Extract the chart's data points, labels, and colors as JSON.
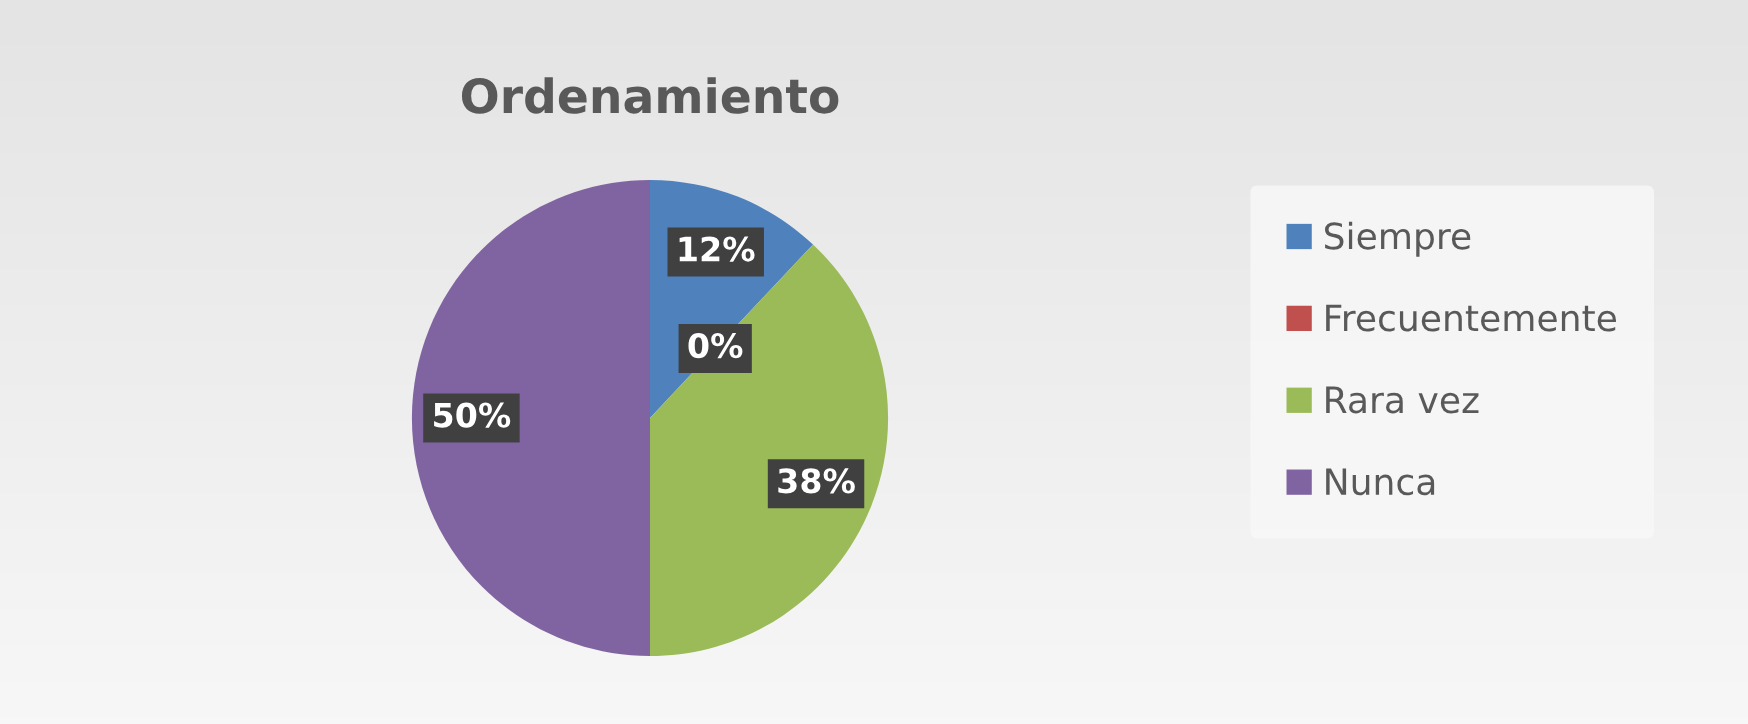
{
  "chart_data": {
    "type": "pie",
    "title": "Ordenamiento",
    "categories": [
      "Siempre",
      "Frecuentemente",
      "Rara vez",
      "Nunca"
    ],
    "values": [
      12,
      0,
      38,
      50
    ],
    "colors": [
      "#4f81bd",
      "#c0504d",
      "#9bbb59",
      "#8064a2"
    ],
    "value_labels": [
      "12%",
      "0%",
      "38%",
      "50%"
    ],
    "legend": "right"
  }
}
